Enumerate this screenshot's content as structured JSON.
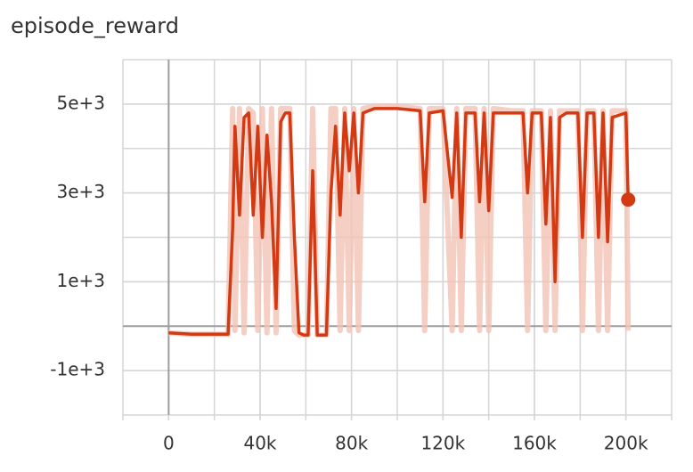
{
  "chart_data": {
    "type": "line",
    "title": "episode_reward",
    "x": [
      0,
      10000,
      20000,
      26000,
      28000,
      29000,
      31000,
      33000,
      35000,
      37000,
      39000,
      41000,
      43000,
      45000,
      47000,
      49000,
      51000,
      53000,
      55000,
      57000,
      59000,
      61000,
      63000,
      65000,
      67000,
      69000,
      71000,
      73000,
      75000,
      77000,
      79000,
      81000,
      83000,
      85000,
      90000,
      100000,
      110000,
      112000,
      114000,
      120000,
      124000,
      126000,
      128000,
      130000,
      134000,
      136000,
      138000,
      140000,
      142000,
      150000,
      155000,
      157000,
      159000,
      163000,
      165000,
      167000,
      169000,
      171000,
      174000,
      179000,
      181000,
      183000,
      186000,
      188000,
      190000,
      192000,
      194000,
      200000,
      201000
    ],
    "series": [
      {
        "color": "#f4c3b5",
        "values": [
          -150,
          -180,
          -180,
          -180,
          4900,
          -100,
          4900,
          -150,
          4900,
          4800,
          -100,
          4900,
          -150,
          4900,
          -150,
          4900,
          4900,
          4900,
          -100,
          -200,
          -200,
          -200,
          4900,
          -200,
          -200,
          -200,
          4900,
          4900,
          -100,
          4900,
          -100,
          4900,
          -100,
          4900,
          4950,
          4950,
          4900,
          -100,
          4900,
          4900,
          -100,
          4900,
          -100,
          4900,
          4900,
          -100,
          4900,
          -100,
          4900,
          4850,
          4850,
          -100,
          4850,
          4850,
          -100,
          4850,
          -100,
          4850,
          4850,
          4850,
          -100,
          4850,
          4850,
          -100,
          4850,
          -100,
          4850,
          4850,
          -100
        ]
      },
      {
        "color": "#d33a13",
        "values": [
          -150,
          -180,
          -180,
          -180,
          2200,
          4500,
          2500,
          4700,
          4800,
          2500,
          4500,
          2000,
          4300,
          2800,
          400,
          4600,
          4800,
          4800,
          2000,
          -150,
          -200,
          -200,
          3500,
          -200,
          -200,
          -200,
          3000,
          4500,
          2500,
          4800,
          3500,
          4800,
          3000,
          4800,
          4900,
          4900,
          4850,
          2800,
          4800,
          4850,
          2900,
          4800,
          2000,
          4800,
          4800,
          2800,
          4800,
          2600,
          4800,
          4800,
          4800,
          3000,
          4800,
          4800,
          2300,
          4700,
          1000,
          4700,
          4800,
          4800,
          2000,
          4800,
          4800,
          2000,
          4800,
          1900,
          4700,
          4800,
          2850
        ]
      }
    ],
    "xlim": [
      -20000,
      220000
    ],
    "xticks": [
      {
        "value": 0,
        "label": "0"
      },
      {
        "value": 40000,
        "label": "40k"
      },
      {
        "value": 80000,
        "label": "80k"
      },
      {
        "value": 120000,
        "label": "120k"
      },
      {
        "value": 160000,
        "label": "160k"
      },
      {
        "value": 200000,
        "label": "200k"
      }
    ],
    "ylim": [
      -2000,
      6000
    ],
    "yticks": [
      {
        "value": -1000,
        "label": "-1e+3"
      },
      {
        "value": 1000,
        "label": "1e+3"
      },
      {
        "value": 3000,
        "label": "3e+3"
      },
      {
        "value": 5000,
        "label": "5e+3"
      }
    ],
    "grid": true,
    "minor_grid": true
  }
}
